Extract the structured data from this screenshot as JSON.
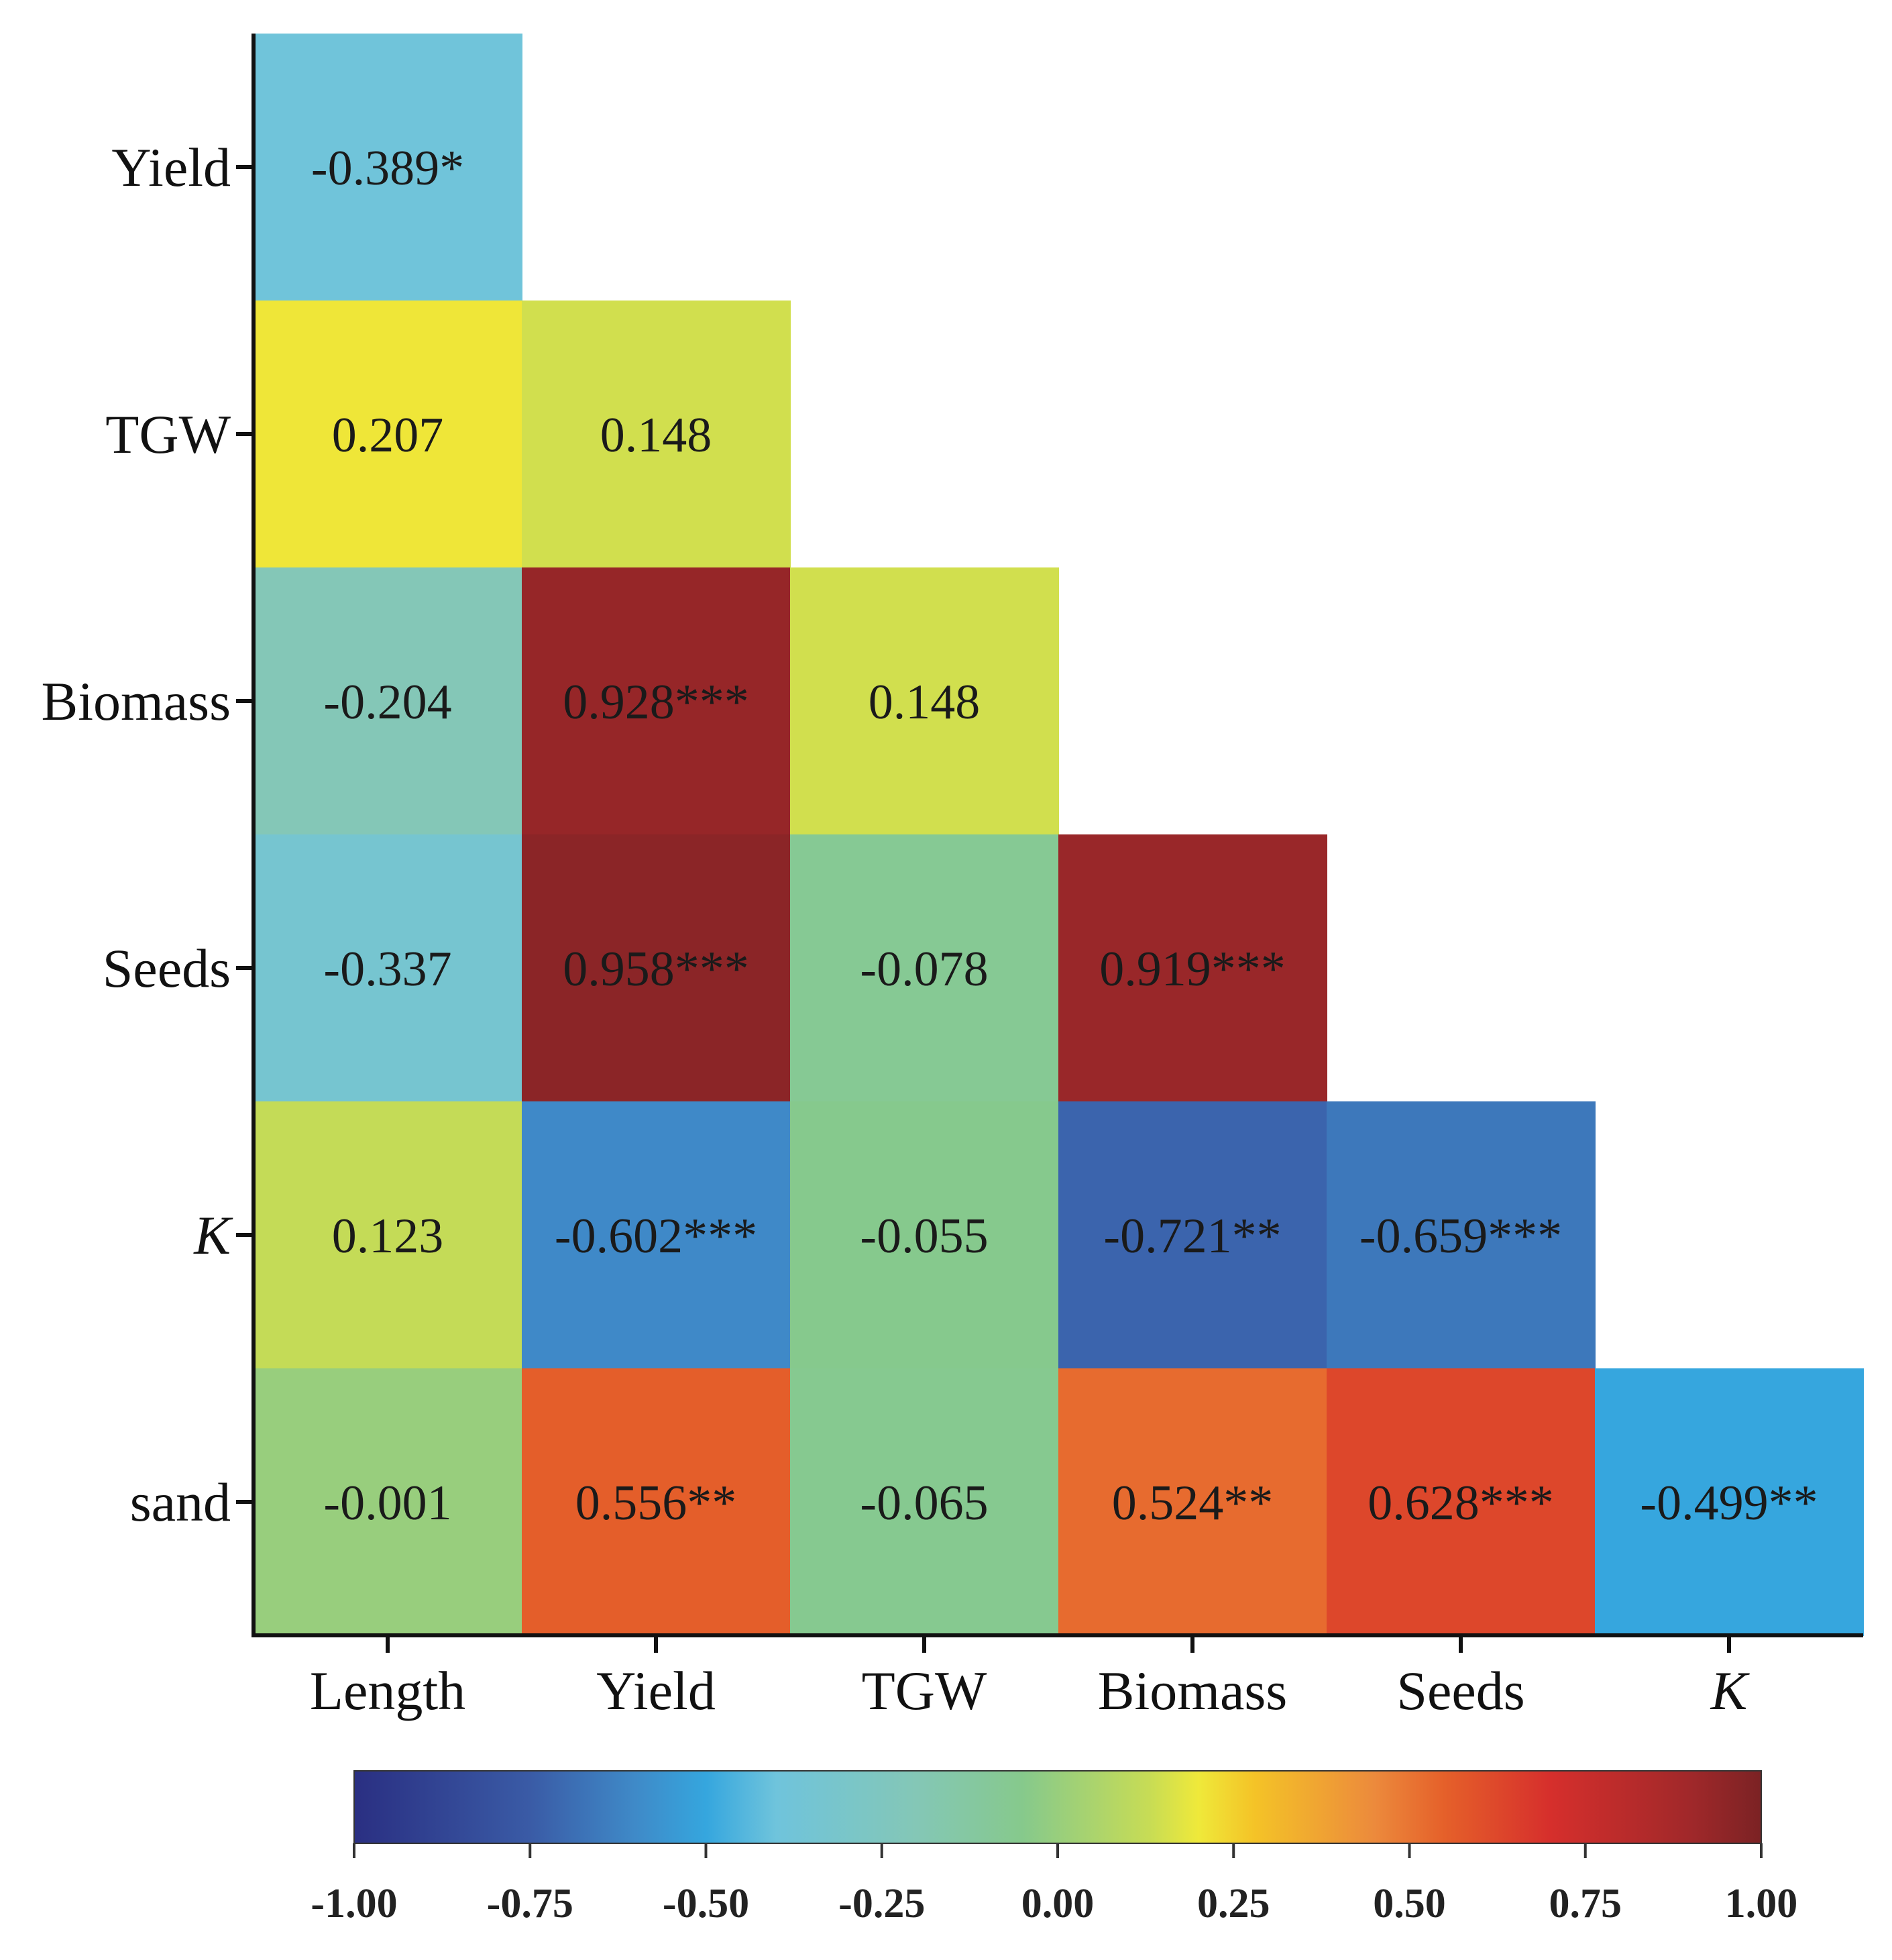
{
  "chart_data": {
    "type": "heatmap",
    "title": "",
    "columns": [
      "Length",
      "Yield",
      "TGW",
      "Biomass",
      "Seeds",
      "K"
    ],
    "rows": [
      "Yield",
      "TGW",
      "Biomass",
      "Seeds",
      "K",
      "sand"
    ],
    "italic_labels": [
      "K"
    ],
    "cells": [
      {
        "row": "Yield",
        "col": "Length",
        "value": -0.389,
        "label": "-0.389*"
      },
      {
        "row": "TGW",
        "col": "Length",
        "value": 0.207,
        "label": "0.207"
      },
      {
        "row": "TGW",
        "col": "Yield",
        "value": 0.148,
        "label": "0.148"
      },
      {
        "row": "Biomass",
        "col": "Length",
        "value": -0.204,
        "label": "-0.204"
      },
      {
        "row": "Biomass",
        "col": "Yield",
        "value": 0.928,
        "label": "0.928***"
      },
      {
        "row": "Biomass",
        "col": "TGW",
        "value": 0.148,
        "label": "0.148"
      },
      {
        "row": "Seeds",
        "col": "Length",
        "value": -0.337,
        "label": "-0.337"
      },
      {
        "row": "Seeds",
        "col": "Yield",
        "value": 0.958,
        "label": "0.958***"
      },
      {
        "row": "Seeds",
        "col": "TGW",
        "value": -0.078,
        "label": "-0.078"
      },
      {
        "row": "Seeds",
        "col": "Biomass",
        "value": 0.919,
        "label": "0.919***"
      },
      {
        "row": "K",
        "col": "Length",
        "value": 0.123,
        "label": "0.123"
      },
      {
        "row": "K",
        "col": "Yield",
        "value": -0.602,
        "label": "-0.602***"
      },
      {
        "row": "K",
        "col": "TGW",
        "value": -0.055,
        "label": "-0.055"
      },
      {
        "row": "K",
        "col": "Biomass",
        "value": -0.721,
        "label": "-0.721**"
      },
      {
        "row": "K",
        "col": "Seeds",
        "value": -0.659,
        "label": "-0.659***"
      },
      {
        "row": "sand",
        "col": "Length",
        "value": -0.001,
        "label": "-0.001"
      },
      {
        "row": "sand",
        "col": "Yield",
        "value": 0.556,
        "label": "0.556**"
      },
      {
        "row": "sand",
        "col": "TGW",
        "value": -0.065,
        "label": "-0.065"
      },
      {
        "row": "sand",
        "col": "Biomass",
        "value": 0.524,
        "label": "0.524**"
      },
      {
        "row": "sand",
        "col": "Seeds",
        "value": 0.628,
        "label": "0.628***"
      },
      {
        "row": "sand",
        "col": "K",
        "value": -0.499,
        "label": "-0.499**"
      }
    ],
    "colorbar": {
      "range": [
        -1.0,
        1.0
      ],
      "ticks": [
        "-1.00",
        "-0.75",
        "-0.50",
        "-0.25",
        "0.00",
        "0.25",
        "0.50",
        "0.75",
        "1.00"
      ],
      "tick_values": [
        -1.0,
        -0.75,
        -0.5,
        -0.25,
        0.0,
        0.25,
        0.5,
        0.75,
        1.0
      ],
      "colors": [
        "#2a2f82",
        "#3a5ba6",
        "#3f8ac8",
        "#35a6de",
        "#6fc4dc",
        "#84c7b6",
        "#86c98c",
        "#c7dc55",
        "#efe93a",
        "#f4c327",
        "#ec8a3c",
        "#e5602a",
        "#d62f2c",
        "#a0282a",
        "#7b2224"
      ],
      "color_stops": [
        -1.0,
        -0.75,
        -0.6,
        -0.5,
        -0.4,
        -0.2,
        -0.05,
        0.13,
        0.2,
        0.28,
        0.45,
        0.55,
        0.7,
        0.9,
        1.0
      ]
    }
  }
}
